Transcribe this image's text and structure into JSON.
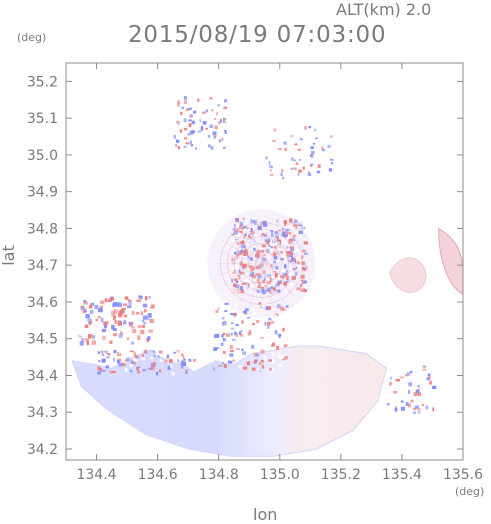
{
  "header": {
    "alt_label": "ALT(km) 2.0",
    "datetime": "2015/08/19 07:03:00"
  },
  "axes": {
    "y_unit": "(deg)",
    "x_unit": "(deg)",
    "x_label": "lon",
    "y_label": "lat"
  },
  "palette": {
    "positive": "#f07a7a",
    "negative": "#7f89ff",
    "neutral": "#e6e6fb"
  },
  "chart_data": {
    "type": "heatmap",
    "title": "2015/08/19 07:03:00",
    "xlabel": "lon",
    "ylabel": "lat",
    "xlim": [
      134.3,
      135.6
    ],
    "ylim": [
      34.17,
      35.25
    ],
    "x_ticks": [
      134.4,
      134.6,
      134.8,
      135.0,
      135.2,
      135.4,
      135.6
    ],
    "y_ticks": [
      34.2,
      34.3,
      34.4,
      34.5,
      34.6,
      34.7,
      34.8,
      34.9,
      35.0,
      35.1,
      35.2
    ],
    "center": [
      134.94,
      34.705
    ],
    "regions": [
      {
        "name": "southern-broad-field",
        "lon": [
          134.32,
          135.35
        ],
        "lat": [
          34.18,
          34.48
        ],
        "value": "mixed"
      },
      {
        "name": "central-core",
        "lon": [
          134.84,
          135.08
        ],
        "lat": [
          34.63,
          34.83
        ],
        "value": "mixed"
      },
      {
        "name": "east-cell",
        "lon": [
          135.35,
          135.5
        ],
        "lat": [
          34.64,
          34.73
        ],
        "value": "positive"
      },
      {
        "name": "northeast-cell",
        "lon": [
          135.5,
          135.6
        ],
        "lat": [
          34.65,
          34.8
        ],
        "value": "positive"
      }
    ]
  }
}
